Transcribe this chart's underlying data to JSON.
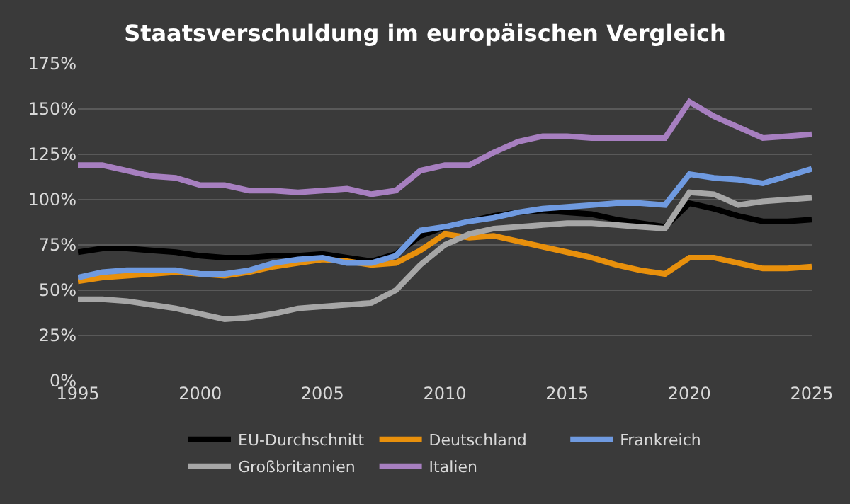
{
  "chart_data": {
    "type": "line",
    "title": "Staatsverschuldung im europäischen Vergleich",
    "x": [
      1995,
      1996,
      1997,
      1998,
      1999,
      2000,
      2001,
      2002,
      2003,
      2004,
      2005,
      2006,
      2007,
      2008,
      2009,
      2010,
      2011,
      2012,
      2013,
      2014,
      2015,
      2016,
      2017,
      2018,
      2019,
      2020,
      2021,
      2022,
      2023,
      2024,
      2025
    ],
    "series": [
      {
        "name": "EU-Durchschnitt",
        "color": "#000000",
        "values": [
          71,
          73,
          73,
          72,
          71,
          69,
          68,
          68,
          69,
          69,
          70,
          68,
          66,
          70,
          80,
          85,
          88,
          91,
          93,
          94,
          93,
          92,
          89,
          87,
          85,
          98,
          95,
          91,
          88,
          88,
          89
        ]
      },
      {
        "name": "Deutschland",
        "color": "#e8900c",
        "values": [
          55,
          57,
          58,
          59,
          60,
          59,
          58,
          60,
          63,
          65,
          67,
          66,
          64,
          65,
          72,
          81,
          79,
          80,
          77,
          74,
          71,
          68,
          64,
          61,
          59,
          68,
          68,
          65,
          62,
          62,
          63
        ]
      },
      {
        "name": "Frankreich",
        "color": "#6f9ae0",
        "values": [
          57,
          60,
          61,
          61,
          61,
          59,
          59,
          61,
          65,
          67,
          68,
          65,
          65,
          69,
          83,
          85,
          88,
          90,
          93,
          95,
          96,
          97,
          98,
          98,
          97,
          114,
          112,
          111,
          109,
          113,
          117
        ]
      },
      {
        "name": "Großbritannien",
        "color": "#a6a6a6",
        "values": [
          45,
          45,
          44,
          42,
          40,
          37,
          34,
          35,
          37,
          40,
          41,
          42,
          43,
          50,
          64,
          75,
          81,
          84,
          85,
          86,
          87,
          87,
          86,
          85,
          84,
          104,
          103,
          97,
          99,
          100,
          101
        ]
      },
      {
        "name": "Italien",
        "color": "#a77fc0",
        "values": [
          119,
          119,
          116,
          113,
          112,
          108,
          108,
          105,
          105,
          104,
          105,
          106,
          103,
          105,
          116,
          119,
          119,
          126,
          132,
          135,
          135,
          134,
          134,
          134,
          134,
          154,
          146,
          140,
          134,
          135,
          136
        ]
      }
    ],
    "xlim": [
      1995,
      2025
    ],
    "xticks": [
      1995,
      2000,
      2005,
      2010,
      2015,
      2020,
      2025
    ],
    "ylim": [
      0,
      175
    ],
    "yticks": [
      {
        "value": 0,
        "label": "0%"
      },
      {
        "value": 25,
        "label": "25%"
      },
      {
        "value": 50,
        "label": "50%"
      },
      {
        "value": 75,
        "label": "75%"
      },
      {
        "value": 100,
        "label": "100%"
      },
      {
        "value": 125,
        "label": "125%"
      },
      {
        "value": 150,
        "label": "150%"
      },
      {
        "value": 175,
        "label": "175%"
      }
    ],
    "grid": "y",
    "legend": "bottom",
    "marker": "none",
    "line_style": "solid"
  }
}
